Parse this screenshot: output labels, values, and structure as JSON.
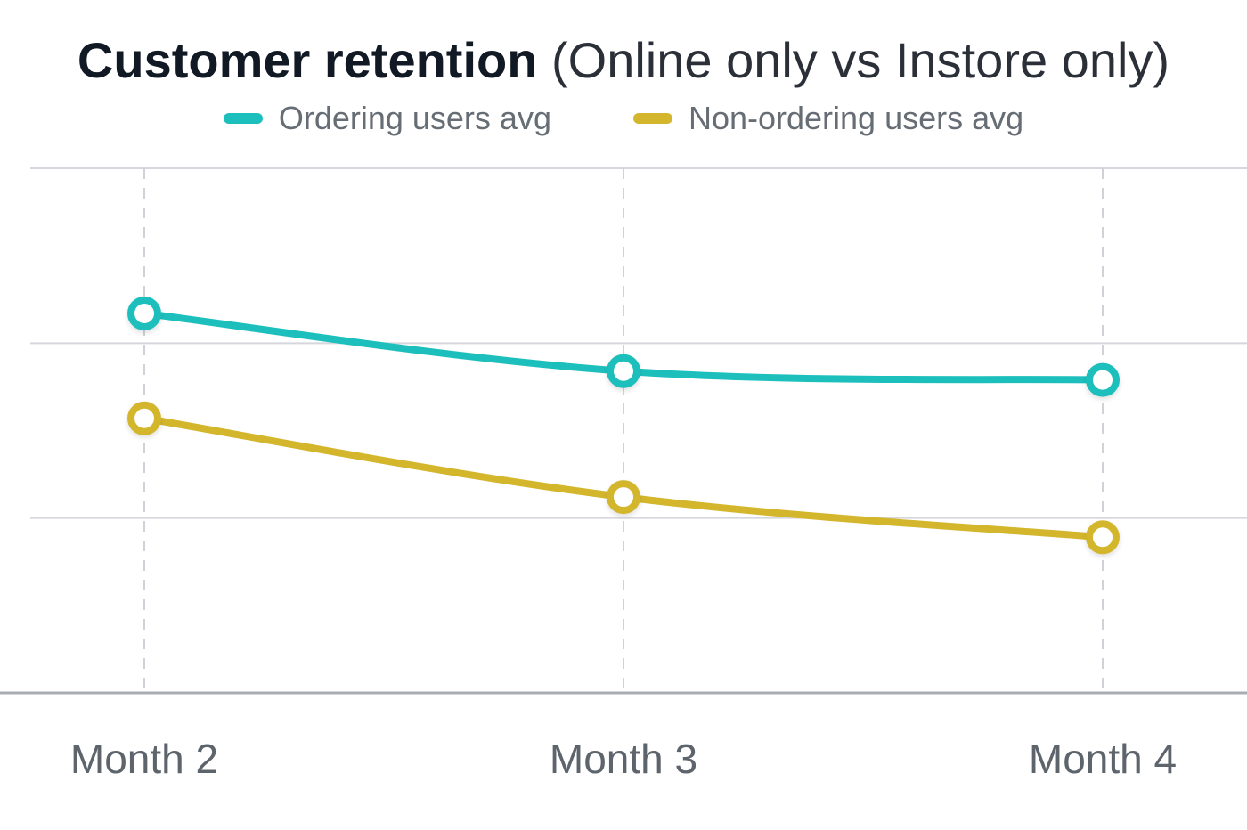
{
  "chart_data": {
    "type": "line",
    "title": "Customer retention",
    "subtitle": "(Online only vs Instore only)",
    "categories": [
      "Month 2",
      "Month 3",
      "Month 4"
    ],
    "series": [
      {
        "name": "Ordering users avg",
        "color": "#1dbfbd",
        "values": [
          2.17,
          1.84,
          1.79
        ]
      },
      {
        "name": "Non-ordering users avg",
        "color": "#d4b62c",
        "values": [
          1.57,
          1.12,
          0.89
        ]
      }
    ],
    "ylim": [
      0,
      3
    ],
    "y_gridlines": [
      1,
      2,
      3
    ],
    "xlabel": "",
    "ylabel": "",
    "legend_position": "top-center",
    "grid": true
  }
}
